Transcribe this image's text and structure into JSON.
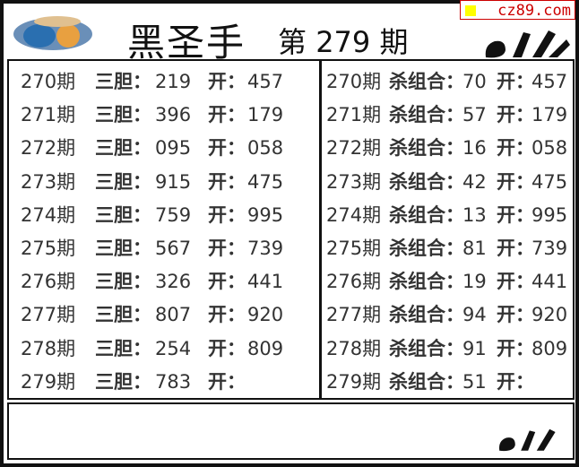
{
  "header": {
    "title": "黑圣手",
    "issue_prefix": "第",
    "issue_number": "279",
    "issue_suffix": "期",
    "watermark": "cz89.com",
    "watermark_color": "#cc0000",
    "logo_icon": "3d-logo-icon",
    "hand_icon": "ok-hand-icon"
  },
  "left_panel": {
    "label_dan": "三胆：",
    "label_open": "开：",
    "rows": [
      {
        "period": "270期",
        "dan": "219",
        "open": "457"
      },
      {
        "period": "271期",
        "dan": "396",
        "open": "179"
      },
      {
        "period": "272期",
        "dan": "095",
        "open": "058"
      },
      {
        "period": "273期",
        "dan": "915",
        "open": "475"
      },
      {
        "period": "274期",
        "dan": "759",
        "open": "995"
      },
      {
        "period": "275期",
        "dan": "567",
        "open": "739"
      },
      {
        "period": "276期",
        "dan": "326",
        "open": "441"
      },
      {
        "period": "277期",
        "dan": "807",
        "open": "920"
      },
      {
        "period": "278期",
        "dan": "254",
        "open": "809"
      },
      {
        "period": "279期",
        "dan": "783",
        "open": ""
      }
    ]
  },
  "right_panel": {
    "label_kill": "杀组合：",
    "label_open": "开：",
    "rows": [
      {
        "period": "270期",
        "kill": "70",
        "open": "457"
      },
      {
        "period": "271期",
        "kill": "57",
        "open": "179"
      },
      {
        "period": "272期",
        "kill": "16",
        "open": "058"
      },
      {
        "period": "273期",
        "kill": "42",
        "open": "475"
      },
      {
        "period": "274期",
        "kill": "13",
        "open": "995"
      },
      {
        "period": "275期",
        "kill": "81",
        "open": "739"
      },
      {
        "period": "276期",
        "kill": "19",
        "open": "441"
      },
      {
        "period": "277期",
        "kill": "94",
        "open": "920"
      },
      {
        "period": "278期",
        "kill": "91",
        "open": "809"
      },
      {
        "period": "279期",
        "kill": "51",
        "open": ""
      }
    ]
  }
}
